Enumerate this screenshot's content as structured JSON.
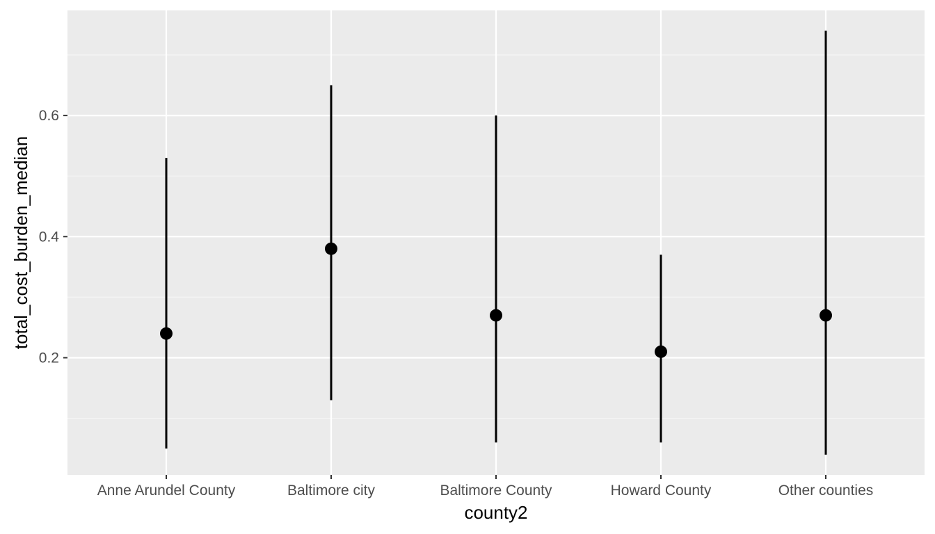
{
  "chart_data": {
    "type": "pointrange",
    "xlabel": "county2",
    "ylabel": "total_cost_burden_median",
    "categories": [
      "Anne Arundel County",
      "Baltimore city",
      "Baltimore County",
      "Howard County",
      "Other counties"
    ],
    "series": [
      {
        "values": [
          0.24,
          0.38,
          0.27,
          0.21,
          0.27
        ],
        "lower": [
          0.05,
          0.13,
          0.06,
          0.06,
          0.04
        ],
        "upper": [
          0.53,
          0.65,
          0.6,
          0.37,
          0.74
        ]
      }
    ],
    "yticks": [
      0.2,
      0.4,
      0.6
    ],
    "ytick_labels": [
      "0.2",
      "0.4",
      "0.6"
    ],
    "ylim": [
      0.0065,
      0.7735
    ],
    "grid": true,
    "colors": {
      "panel_background": "#ebebeb",
      "grid_major": "#ffffff",
      "grid_minor": "#f5f5f5",
      "marks": "#000000",
      "tick_text": "#4d4d4d",
      "axis_title": "#000000"
    }
  }
}
